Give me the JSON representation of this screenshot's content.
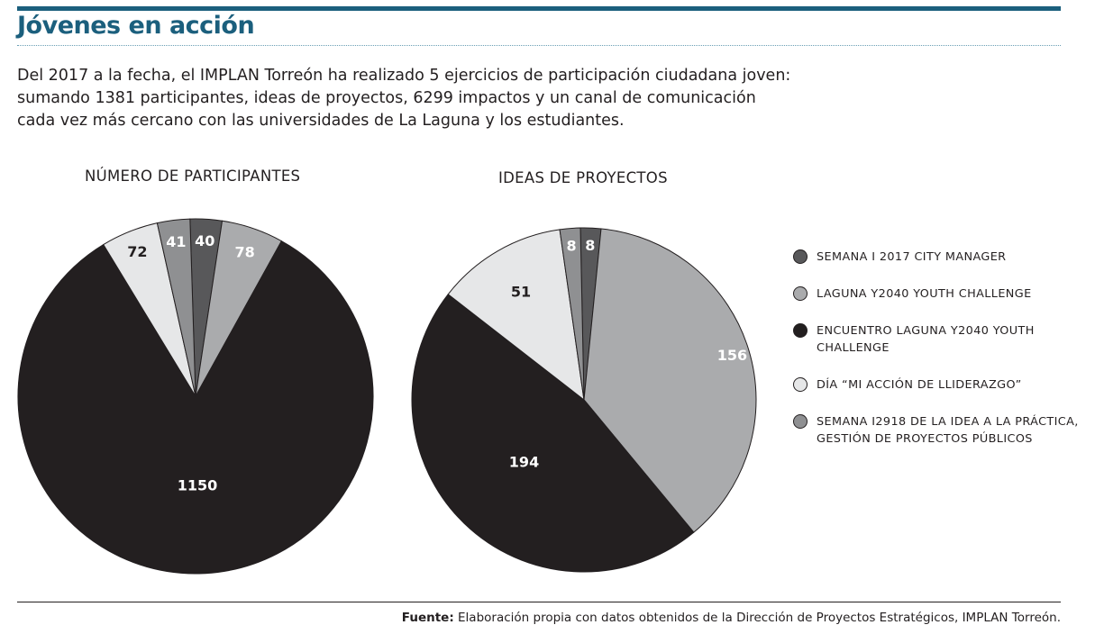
{
  "header": {
    "title": "Jóvenes en acción",
    "intro_lines": [
      "Del 2017 a la fecha, el IMPLAN Torreón ha realizado 5 ejercicios de participación ciudadana joven:",
      "sumando 1381  participantes,  ideas de proyectos, 6299 impactos  y un canal de comunicación",
      "cada vez más cercano con las universidades de La Laguna y los estudiantes."
    ]
  },
  "legend": [
    {
      "label": "SEMANA I 2017 CITY MANAGER",
      "color": "#58585a"
    },
    {
      "label": "LAGUNA Y2040 YOUTH CHALLENGE",
      "color": "#aaabad"
    },
    {
      "label": "ENCUENTRO LAGUNA Y2040 YOUTH CHALLENGE",
      "color": "#231f20"
    },
    {
      "label": "DÍA “MI ACCIÓN DE LLIDERAZGO”",
      "color": "#e6e7e8"
    },
    {
      "label": "SEMANA I2918 DE LA IDEA A LA PRÁCTICA, GESTIÓN DE PROYECTOS PÚBLICOS",
      "color": "#8f9092"
    }
  ],
  "chart_data": [
    {
      "type": "pie",
      "title": "NÚMERO DE PARTICIPANTES",
      "slices": [
        {
          "label": "SEMANA I 2017 CITY MANAGER",
          "value": 40,
          "color": "#58585a",
          "label_color": "#ffffff"
        },
        {
          "label": "LAGUNA Y2040 YOUTH CHALLENGE",
          "value": 78,
          "color": "#aaabad",
          "label_color": "#ffffff"
        },
        {
          "label": "ENCUENTRO LAGUNA Y2040 YOUTH CHALLENGE",
          "value": 1150,
          "color": "#231f20",
          "label_color": "#ffffff"
        },
        {
          "label": "DÍA “MI ACCIÓN DE LLIDERAZGO”",
          "value": 72,
          "color": "#e6e7e8",
          "label_color": "#231f20"
        },
        {
          "label": "SEMANA I2918 DE LA IDEA A LA PRÁCTICA, GESTIÓN DE PROYECTOS PÚBLICOS",
          "value": 41,
          "color": "#8f9092",
          "label_color": "#ffffff"
        }
      ]
    },
    {
      "type": "pie",
      "title": "IDEAS DE PROYECTOS",
      "slices": [
        {
          "label": "SEMANA I 2017 CITY MANAGER",
          "value": 8,
          "color": "#58585a",
          "label_color": "#ffffff"
        },
        {
          "label": "LAGUNA Y2040 YOUTH CHALLENGE",
          "value": 156,
          "color": "#aaabad",
          "label_color": "#ffffff"
        },
        {
          "label": "ENCUENTRO LAGUNA Y2040 YOUTH CHALLENGE",
          "value": 194,
          "color": "#231f20",
          "label_color": "#ffffff"
        },
        {
          "label": "DÍA “MI ACCIÓN DE LLIDERAZGO”",
          "value": 51,
          "color": "#e6e7e8",
          "label_color": "#231f20"
        },
        {
          "label": "SEMANA I2918 DE LA IDEA A LA PRÁCTICA, GESTIÓN DE PROYECTOS PÚBLICOS",
          "value": 8,
          "color": "#8f9092",
          "label_color": "#ffffff"
        }
      ]
    }
  ],
  "footer": {
    "source_label": "Fuente:",
    "source_text": " Elaboración propia con datos obtenidos de la Dirección de Proyectos Estratégicos, IMPLAN Torreón."
  }
}
